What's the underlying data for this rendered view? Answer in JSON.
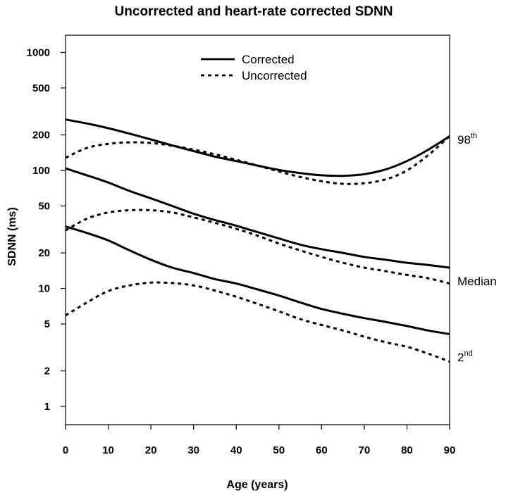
{
  "chart_data": {
    "type": "line",
    "title": "Uncorrected and heart-rate corrected SDNN",
    "xlabel": "Age (years)",
    "ylabel": "SDNN (ms)",
    "xlim": [
      0,
      90
    ],
    "ylim": [
      0.7,
      1400
    ],
    "yscale": "log",
    "xticks": [
      0,
      10,
      20,
      30,
      40,
      50,
      60,
      70,
      80,
      90
    ],
    "yticks": [
      1,
      2,
      5,
      10,
      20,
      50,
      100,
      200,
      500,
      1000
    ],
    "x": [
      0,
      5,
      10,
      15,
      20,
      25,
      30,
      35,
      40,
      45,
      50,
      55,
      60,
      65,
      70,
      75,
      80,
      85,
      90
    ],
    "legend": [
      {
        "label": "Corrected",
        "style": "solid"
      },
      {
        "label": "Uncorrected",
        "style": "dashed"
      }
    ],
    "series": [
      {
        "name": "Corrected 98th",
        "style": "solid",
        "values": [
          270,
          250,
          228,
          205,
          183,
          163,
          146,
          131,
          120,
          110,
          101,
          95,
          91,
          90,
          93,
          102,
          120,
          150,
          195
        ]
      },
      {
        "name": "Uncorrected 98th",
        "style": "dashed",
        "values": [
          128,
          155,
          168,
          173,
          171,
          162,
          150,
          137,
          123,
          110,
          98,
          88,
          81,
          77,
          78,
          84,
          100,
          135,
          195
        ]
      },
      {
        "name": "Corrected median",
        "style": "solid",
        "values": [
          104,
          91,
          79,
          67,
          58,
          50,
          43,
          38,
          34,
          30,
          26.5,
          23.5,
          21.5,
          20,
          18.5,
          17.5,
          16.5,
          15.8,
          15
        ]
      },
      {
        "name": "Uncorrected median",
        "style": "dashed",
        "values": [
          31,
          39,
          44,
          46,
          46,
          44,
          40,
          36,
          32,
          28,
          24,
          21,
          18.5,
          16.5,
          15,
          14,
          13,
          12.2,
          11
        ]
      },
      {
        "name": "Corrected 2nd",
        "style": "solid",
        "values": [
          33.5,
          29.5,
          25.5,
          21,
          17.5,
          15,
          13.5,
          12,
          11,
          9.8,
          8.7,
          7.6,
          6.7,
          6.1,
          5.6,
          5.2,
          4.8,
          4.4,
          4.1
        ]
      },
      {
        "name": "Uncorrected 2nd",
        "style": "dashed",
        "values": [
          5.9,
          7.6,
          9.5,
          10.6,
          11.2,
          11.1,
          10.6,
          9.6,
          8.5,
          7.4,
          6.4,
          5.5,
          4.9,
          4.4,
          3.9,
          3.5,
          3.2,
          2.8,
          2.4
        ]
      }
    ],
    "annotations": {
      "p98": {
        "main": "98",
        "sup": "th"
      },
      "median": "Median",
      "p2": {
        "main": "2",
        "sup": "nd"
      }
    }
  }
}
